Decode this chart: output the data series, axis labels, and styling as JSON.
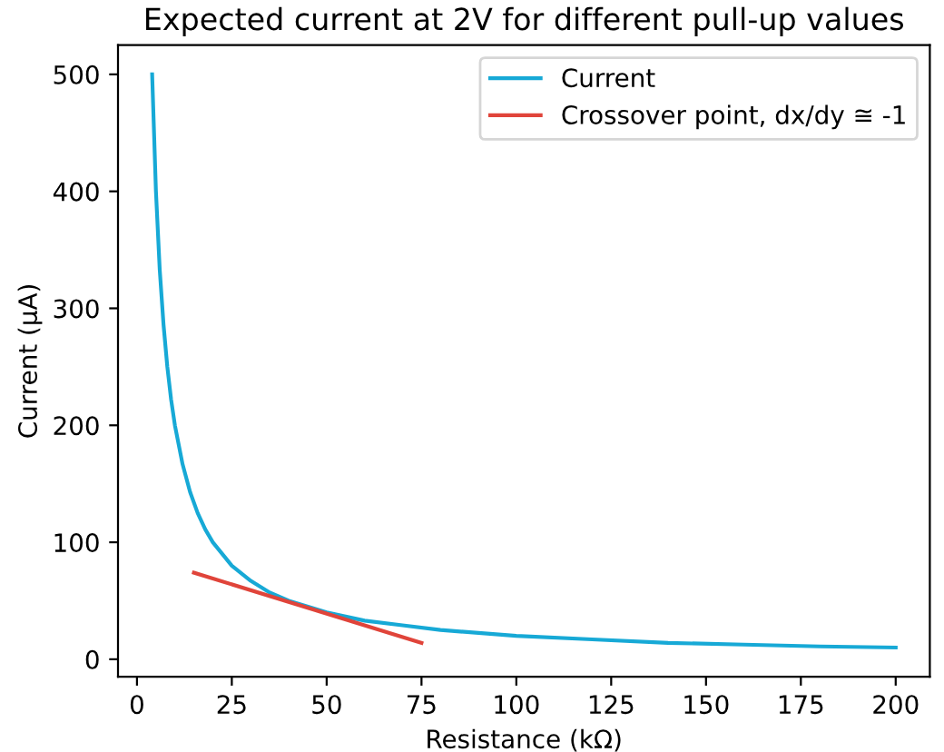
{
  "chart_data": {
    "type": "line",
    "title": "Expected current at 2V for different pull-up values",
    "xlabel": "Resistance (kΩ)",
    "ylabel": "Current (μA)",
    "series": [
      {
        "name": "Current",
        "color": "#17a9d6",
        "x": [
          4,
          5,
          6,
          7,
          8,
          9,
          10,
          12,
          14,
          16,
          18,
          20,
          25,
          30,
          35,
          40,
          50,
          60,
          70,
          80,
          100,
          120,
          140,
          160,
          180,
          200
        ],
        "values": [
          500,
          400,
          333,
          286,
          250,
          222,
          200,
          167,
          143,
          125,
          111,
          100,
          80,
          67,
          57,
          50,
          40,
          33,
          29,
          25,
          20,
          17,
          14,
          12.5,
          11,
          10
        ]
      },
      {
        "name": "Crossover point, dx/dy ≅ -1",
        "color": "#e0443a",
        "x": [
          15,
          75
        ],
        "values": [
          74,
          14
        ]
      }
    ],
    "xlim": [
      -5,
      209
    ],
    "ylim": [
      -15,
      525
    ],
    "xticks": [
      0,
      25,
      50,
      75,
      100,
      125,
      150,
      175,
      200
    ],
    "yticks": [
      0,
      100,
      200,
      300,
      400,
      500
    ],
    "legend": "top right",
    "grid": false,
    "marker": "none",
    "line_style": "solid"
  }
}
